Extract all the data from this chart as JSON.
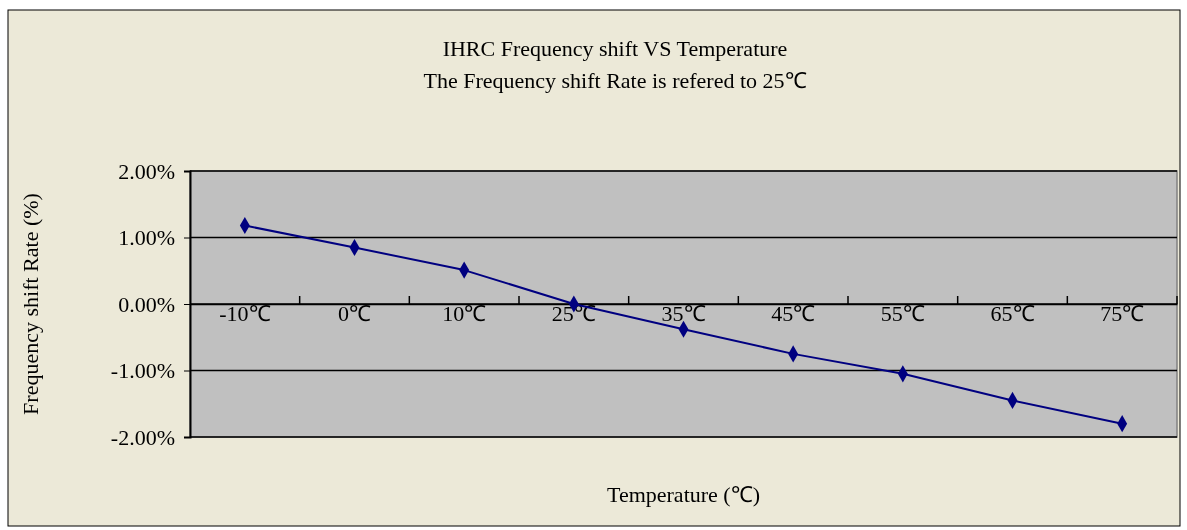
{
  "chart_data": {
    "type": "line",
    "title": "IHRC Frequency shift VS Temperature",
    "subtitle": "The Frequency shift Rate is refered to 25℃",
    "xlabel": "Temperature (℃)",
    "ylabel": "Frequency shift Rate (%)",
    "categories": [
      "-10℃",
      "0℃",
      "10℃",
      "25℃",
      "35℃",
      "45℃",
      "55℃",
      "65℃",
      "75℃"
    ],
    "series": [
      {
        "color": "#000080",
        "values": [
          1.18,
          0.85,
          0.51,
          0.0,
          -0.38,
          -0.75,
          -1.05,
          -1.45,
          -1.8
        ]
      }
    ],
    "ylim": [
      -2,
      2
    ],
    "yticks": [
      {
        "value": -2,
        "label": "-2.00%"
      },
      {
        "value": -1,
        "label": "-1.00%"
      },
      {
        "value": 0,
        "label": "0.00%"
      },
      {
        "value": 1,
        "label": "1.00%"
      },
      {
        "value": 2,
        "label": "2.00%"
      }
    ],
    "grid": "y",
    "marker": "diamond",
    "line_style": "solid"
  }
}
